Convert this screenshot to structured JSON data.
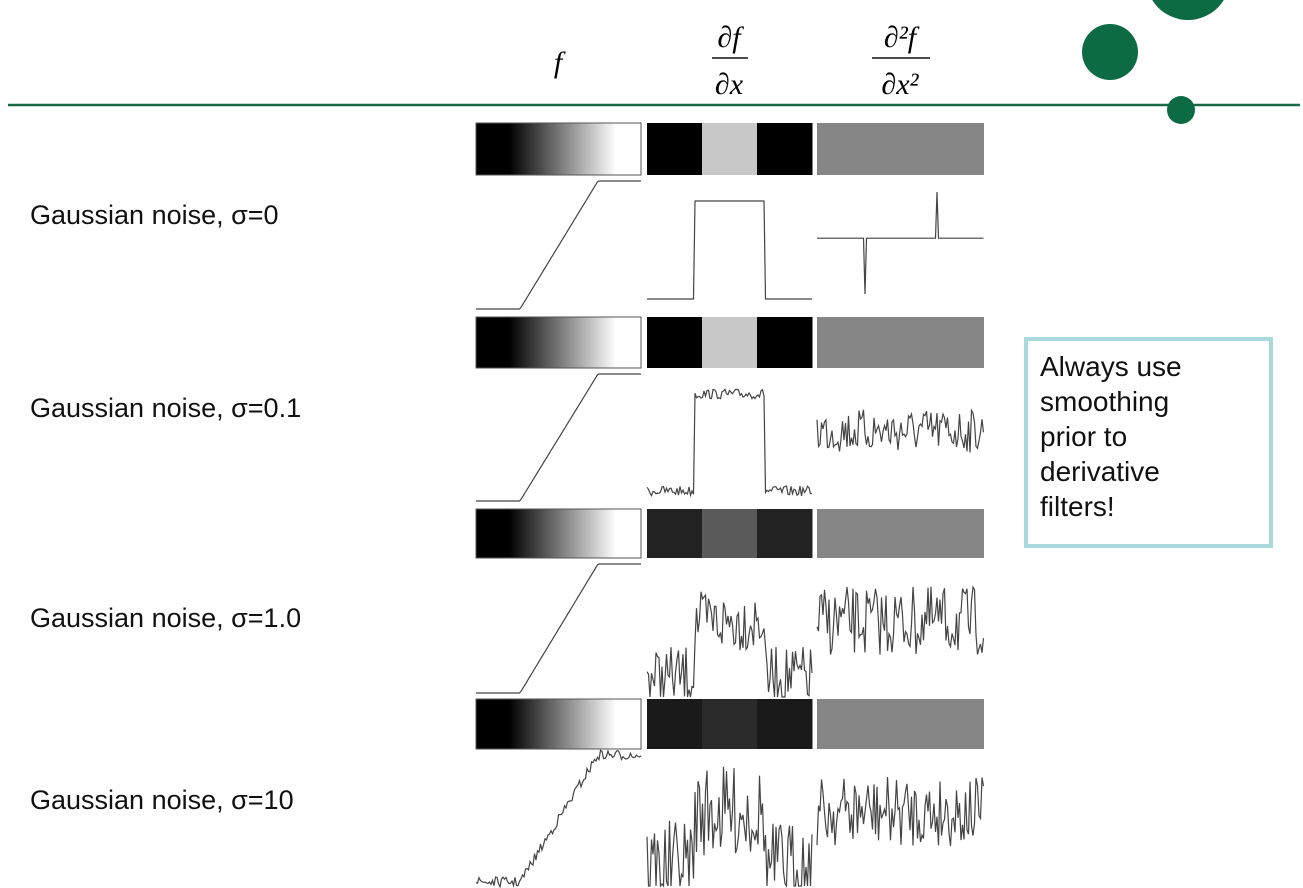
{
  "header": {
    "columns": [
      {
        "label": "f"
      },
      {
        "numerator": "∂f",
        "denominator": "∂x"
      },
      {
        "numerator": "∂²f",
        "denominator": "∂x²"
      }
    ]
  },
  "rows": [
    {
      "label": "Gaussian noise, σ=0"
    },
    {
      "label": "Gaussian noise, σ=0.1"
    },
    {
      "label": "Gaussian noise, σ=1.0"
    },
    {
      "label": "Gaussian noise, σ=10"
    }
  ],
  "callout": {
    "lines": [
      "Always use",
      "smoothing",
      "prior to",
      "derivative",
      "filters!"
    ]
  }
}
